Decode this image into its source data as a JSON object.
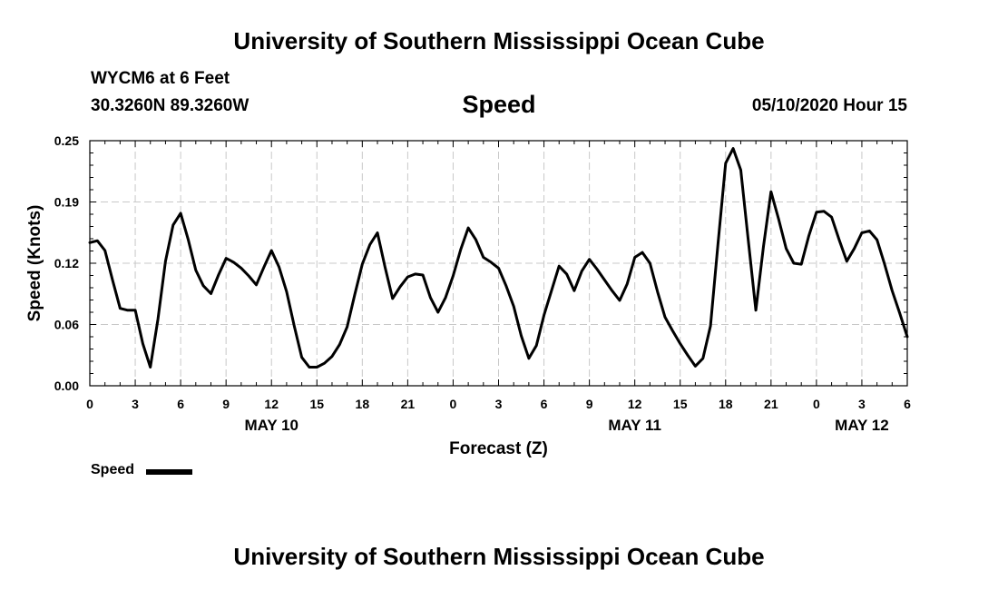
{
  "header": {
    "title": "University of Southern Mississippi Ocean Cube",
    "station": "WYCM6 at 6 Feet",
    "coords": "30.3260N 89.3260W",
    "variable": "Speed",
    "issued": "05/10/2020 Hour 15"
  },
  "footer": {
    "title": "University of Southern Mississippi Ocean Cube"
  },
  "legend": {
    "label": "Speed"
  },
  "colors": {
    "line": "#000000",
    "grid": "#c8c8c8",
    "background": "#ffffff"
  },
  "chart_data": {
    "type": "line",
    "title": "Speed",
    "xlabel": "Forecast (Z)",
    "ylabel": "Speed (Knots)",
    "ylim": [
      0,
      0.25
    ],
    "xlim": [
      0,
      54
    ],
    "grid": true,
    "legend_position": "bottom-left",
    "yticks": [
      {
        "value": 0.0,
        "label": "0.00"
      },
      {
        "value": 0.0625,
        "label": "0.06"
      },
      {
        "value": 0.125,
        "label": "0.12"
      },
      {
        "value": 0.1875,
        "label": "0.19"
      },
      {
        "value": 0.25,
        "label": "0.25"
      }
    ],
    "xticks": [
      {
        "value": 0,
        "label": "0"
      },
      {
        "value": 3,
        "label": "3"
      },
      {
        "value": 6,
        "label": "6"
      },
      {
        "value": 9,
        "label": "9"
      },
      {
        "value": 12,
        "label": "12"
      },
      {
        "value": 15,
        "label": "15"
      },
      {
        "value": 18,
        "label": "18"
      },
      {
        "value": 21,
        "label": "21"
      },
      {
        "value": 24,
        "label": "0"
      },
      {
        "value": 27,
        "label": "3"
      },
      {
        "value": 30,
        "label": "6"
      },
      {
        "value": 33,
        "label": "9"
      },
      {
        "value": 36,
        "label": "12"
      },
      {
        "value": 39,
        "label": "15"
      },
      {
        "value": 42,
        "label": "18"
      },
      {
        "value": 45,
        "label": "21"
      },
      {
        "value": 48,
        "label": "0"
      },
      {
        "value": 51,
        "label": "3"
      },
      {
        "value": 54,
        "label": "6"
      }
    ],
    "day_labels": [
      {
        "value": 12,
        "label": "MAY 10"
      },
      {
        "value": 36,
        "label": "MAY 11"
      },
      {
        "value": 51,
        "label": "MAY 12"
      }
    ],
    "series": [
      {
        "name": "Speed",
        "x": [
          0,
          0.5,
          1,
          1.5,
          2,
          2.5,
          3,
          3.5,
          4,
          4.5,
          5,
          5.5,
          6,
          6.5,
          7,
          7.5,
          8,
          8.5,
          9,
          9.5,
          10,
          10.5,
          11,
          11.5,
          12,
          12.5,
          13,
          13.5,
          14,
          14.5,
          15,
          15.5,
          16,
          16.5,
          17,
          17.5,
          18,
          18.5,
          19,
          19.5,
          20,
          20.5,
          21,
          21.5,
          22,
          22.5,
          23,
          23.5,
          24,
          24.5,
          25,
          25.5,
          26,
          26.5,
          27,
          27.5,
          28,
          28.5,
          29,
          29.5,
          30,
          30.5,
          31,
          31.5,
          32,
          32.5,
          33,
          33.5,
          34,
          34.5,
          35,
          35.5,
          36,
          36.5,
          37,
          37.5,
          38,
          38.5,
          39,
          39.5,
          40,
          40.5,
          41,
          41.5,
          42,
          42.5,
          43,
          43.5,
          44,
          44.5,
          45,
          45.5,
          46,
          46.5,
          47,
          47.5,
          48,
          48.5,
          49,
          49.5,
          50,
          50.5,
          51,
          51.5,
          52,
          52.5,
          53,
          53.5,
          54
        ],
        "values": [
          0.146,
          0.148,
          0.138,
          0.108,
          0.079,
          0.077,
          0.077,
          0.043,
          0.019,
          0.068,
          0.127,
          0.164,
          0.176,
          0.149,
          0.118,
          0.102,
          0.094,
          0.113,
          0.13,
          0.126,
          0.12,
          0.112,
          0.103,
          0.121,
          0.138,
          0.121,
          0.096,
          0.061,
          0.029,
          0.019,
          0.019,
          0.023,
          0.03,
          0.042,
          0.06,
          0.093,
          0.124,
          0.144,
          0.156,
          0.121,
          0.089,
          0.101,
          0.111,
          0.114,
          0.113,
          0.09,
          0.075,
          0.09,
          0.112,
          0.139,
          0.161,
          0.149,
          0.131,
          0.126,
          0.12,
          0.102,
          0.081,
          0.051,
          0.028,
          0.041,
          0.072,
          0.097,
          0.122,
          0.114,
          0.097,
          0.117,
          0.129,
          0.119,
          0.108,
          0.097,
          0.087,
          0.104,
          0.131,
          0.136,
          0.125,
          0.096,
          0.07,
          0.056,
          0.043,
          0.031,
          0.02,
          0.028,
          0.061,
          0.145,
          0.227,
          0.242,
          0.22,
          0.148,
          0.077,
          0.142,
          0.198,
          0.17,
          0.14,
          0.125,
          0.124,
          0.153,
          0.177,
          0.178,
          0.172,
          0.149,
          0.127,
          0.14,
          0.156,
          0.158,
          0.149,
          0.124,
          0.097,
          0.074,
          0.05
        ]
      }
    ]
  }
}
